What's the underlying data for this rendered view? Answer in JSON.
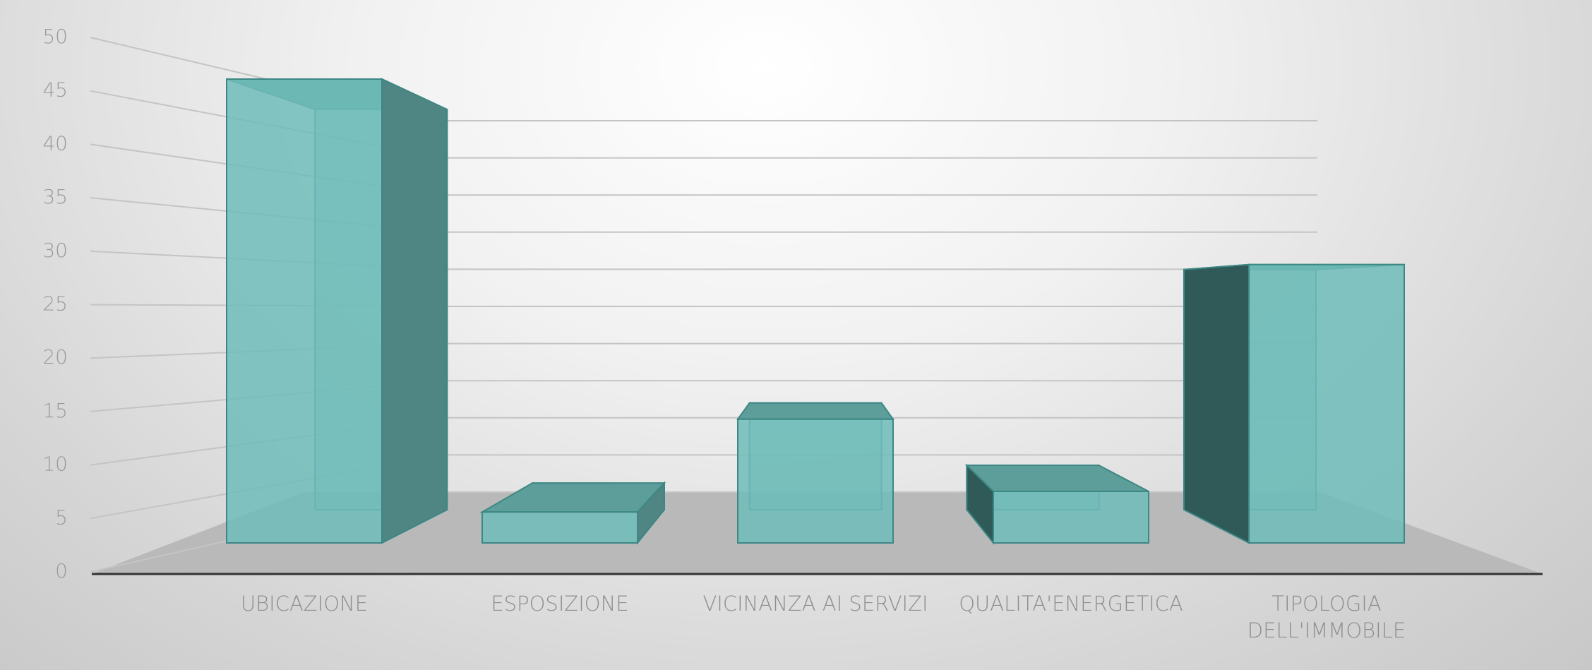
{
  "chart_data": {
    "type": "bar3d",
    "categories": [
      "UBICAZIONE",
      "ESPOSIZIONE",
      "VICINANZA AI SERVIZI",
      "QUALITA'ENERGETICA",
      "TIPOLOGIA DELL'IMMOBILE"
    ],
    "values": [
      45,
      3,
      12,
      5,
      27
    ],
    "color": "#6fbcb9",
    "ylim": [
      0,
      50
    ],
    "yticks": [
      0,
      5,
      10,
      15,
      20,
      25,
      30,
      35,
      40,
      45,
      50
    ],
    "grid": true
  }
}
